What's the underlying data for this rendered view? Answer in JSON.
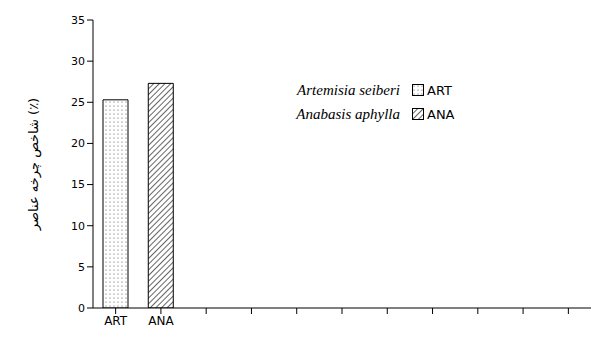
{
  "chart_data": {
    "type": "bar",
    "y_label": "شاخص چرخه عناصر (٪)",
    "categories": [
      "ART",
      "ANA",
      null,
      null,
      null,
      null,
      null,
      null,
      null,
      null,
      null
    ],
    "series": [
      {
        "name": "Artemisia seiberi",
        "color": "#ffffff",
        "values": [
          25.3,
          null,
          null,
          null,
          null,
          null,
          null,
          null,
          null,
          null,
          null
        ]
      },
      {
        "name": "Anabasis aphylla",
        "color": "#ffffff",
        "values": [
          null,
          27.3,
          null,
          null,
          null,
          null,
          null,
          null,
          null,
          null,
          null
        ]
      }
    ],
    "ylim": [
      0,
      35
    ],
    "yticks": [
      0,
      5,
      10,
      15,
      20,
      25,
      30,
      35
    ],
    "grid": false,
    "legend": "upper right"
  }
}
